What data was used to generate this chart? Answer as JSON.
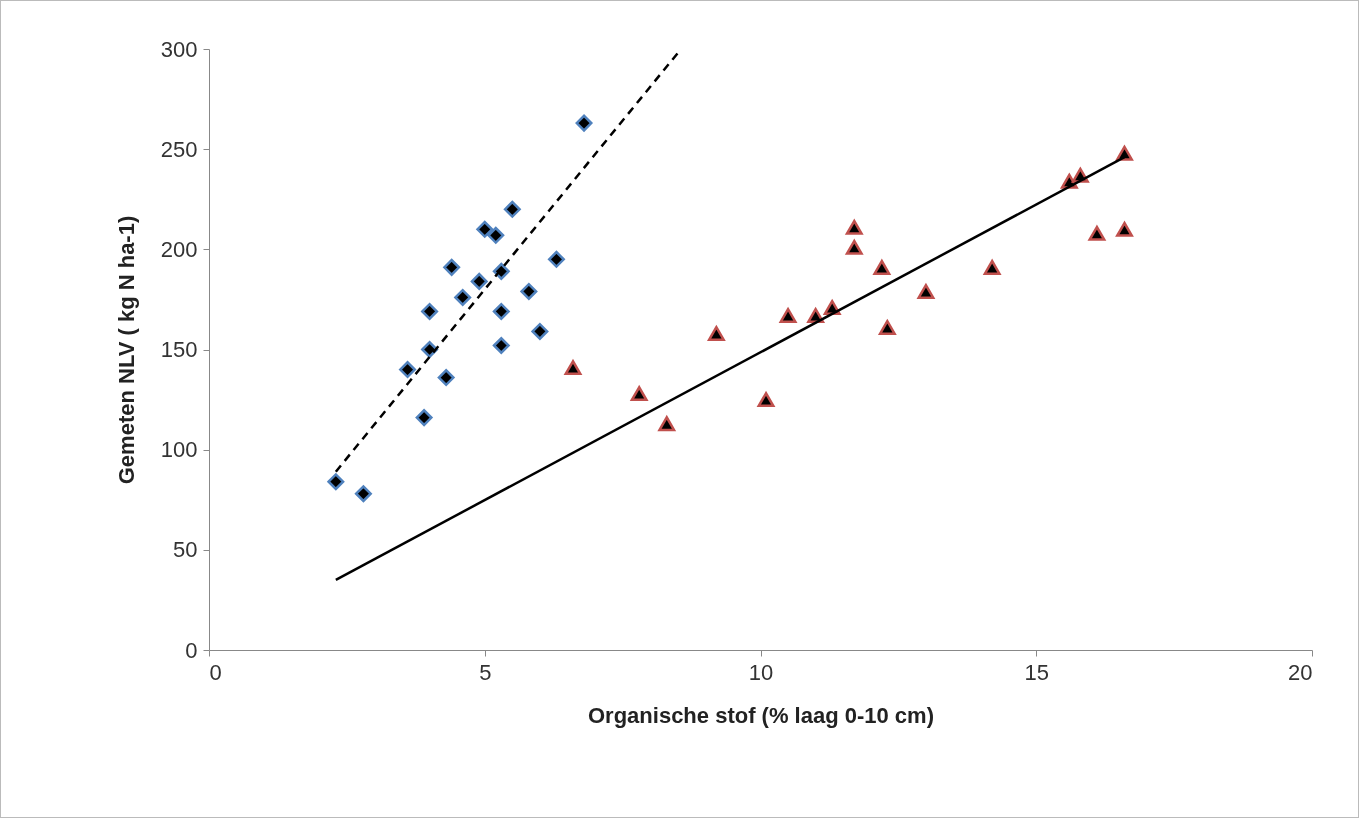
{
  "chart_data": {
    "type": "scatter",
    "xlabel": "Organische stof (% laag 0-10 cm)",
    "ylabel": "Gemeten NLV ( kg N ha-1)",
    "xlim": [
      0,
      20
    ],
    "xticks": [
      0,
      5,
      10,
      15,
      20
    ],
    "ylim": [
      0,
      300
    ],
    "yticks": [
      0,
      50,
      100,
      150,
      200,
      250,
      300
    ],
    "grid": false,
    "series": [
      {
        "marker": "diamond",
        "color": "#4f81bd",
        "x": [
          2.3,
          2.8,
          3.6,
          3.9,
          4.0,
          4.0,
          4.3,
          4.4,
          4.6,
          4.9,
          5.0,
          5.2,
          5.3,
          5.3,
          5.3,
          5.5,
          5.8,
          6.0,
          6.3,
          6.8
        ],
        "values": [
          84,
          78,
          140,
          116,
          150,
          169,
          136,
          191,
          176,
          184,
          210,
          207,
          189,
          169,
          152,
          220,
          179,
          159,
          195,
          263
        ]
      },
      {
        "marker": "triangle",
        "color": "#c0504d",
        "x": [
          6.6,
          7.8,
          8.3,
          9.2,
          10.1,
          10.5,
          11.0,
          11.3,
          11.7,
          11.7,
          12.2,
          12.3,
          13.0,
          14.2,
          15.6,
          15.8,
          16.1,
          16.6,
          16.6
        ],
        "values": [
          141,
          128,
          113,
          158,
          125,
          167,
          167,
          171,
          211,
          201,
          191,
          161,
          179,
          191,
          234,
          237,
          208,
          248,
          210
        ]
      },
      {
        "type": "line",
        "marker": "none",
        "line_style": "dashed",
        "color": "#000000",
        "x": [
          2.3,
          8.56
        ],
        "values": [
          89,
          300
        ]
      },
      {
        "type": "line",
        "marker": "none",
        "line_style": "solid",
        "color": "#000000",
        "x": [
          2.3,
          16.6
        ],
        "values": [
          35,
          246
        ]
      }
    ]
  }
}
